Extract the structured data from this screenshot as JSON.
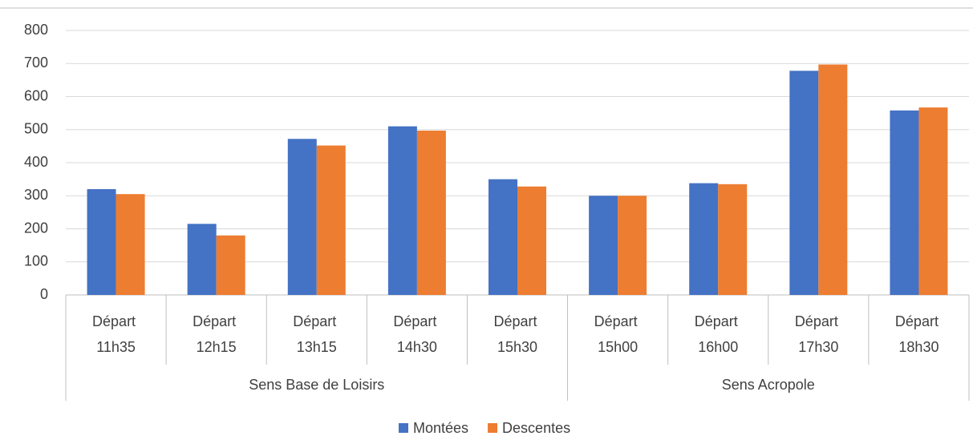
{
  "chart_data": {
    "type": "bar",
    "groups": [
      {
        "label": "Sens Base de Loisirs",
        "categories": [
          "Départ 11h35",
          "Départ 12h15",
          "Départ 13h15",
          "Départ 14h30",
          "Départ 15h30"
        ]
      },
      {
        "label": "Sens Acropole",
        "categories": [
          "Départ 15h00",
          "Départ 16h00",
          "Départ 17h30",
          "Départ 18h30"
        ]
      }
    ],
    "series": [
      {
        "name": "Montées",
        "color": "#4472c4",
        "values": [
          320,
          215,
          472,
          510,
          350,
          300,
          338,
          678,
          558
        ]
      },
      {
        "name": "Descentes",
        "color": "#ed7d31",
        "values": [
          305,
          180,
          452,
          497,
          328,
          300,
          335,
          697,
          567
        ]
      }
    ],
    "ylim": [
      0,
      800
    ],
    "yticks": [
      0,
      100,
      200,
      300,
      400,
      500,
      600,
      700,
      800
    ],
    "grid": true,
    "legend": "bottom"
  }
}
